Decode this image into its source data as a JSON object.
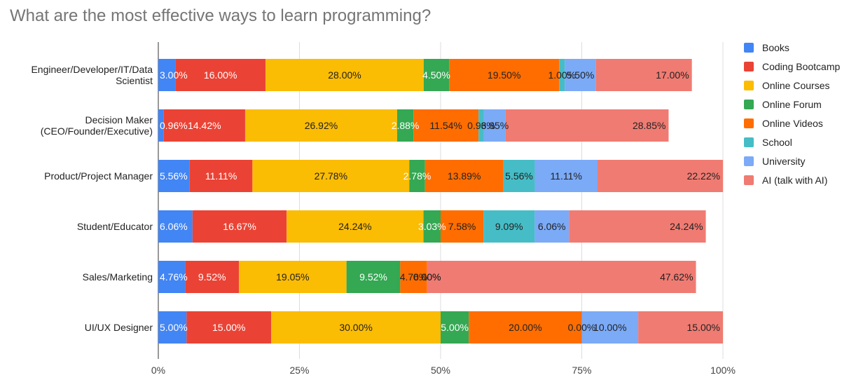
{
  "chart_data": {
    "type": "bar",
    "orientation": "horizontal",
    "stacked": "percent",
    "title": "What are the most effective ways to learn programming?",
    "xlim": [
      0,
      100
    ],
    "x_ticks": [
      "0%",
      "25%",
      "50%",
      "75%",
      "100%"
    ],
    "grid": true,
    "legend_position": "right",
    "categories": [
      [
        "Engineer/Developer/IT/Data",
        "Scientist"
      ],
      [
        "Decision Maker",
        "(CEO/Founder/Executive)"
      ],
      [
        "Product/Project Manager"
      ],
      [
        "Student/Educator"
      ],
      [
        "Sales/Marketing"
      ],
      [
        "UI/UX Designer"
      ]
    ],
    "series": [
      {
        "name": "Books",
        "color": "#4285f4",
        "label_color": "#ffffff",
        "values": [
          3.0,
          0.96,
          5.56,
          6.06,
          4.76,
          5.0
        ],
        "labels": [
          "3.00%",
          "0.96%",
          "5.56%",
          "6.06%",
          "4.76%",
          "5.00%"
        ]
      },
      {
        "name": "Coding Bootcamp",
        "color": "#ea4335",
        "label_color": "#ffffff",
        "values": [
          16.0,
          14.42,
          11.11,
          16.67,
          9.52,
          15.0
        ],
        "labels": [
          "16.00%",
          "14.42%",
          "11.11%",
          "16.67%",
          "9.52%",
          "15.00%"
        ]
      },
      {
        "name": "Online Courses",
        "color": "#fbbc04",
        "label_color": "#222222",
        "values": [
          28.0,
          26.92,
          27.78,
          24.24,
          19.05,
          30.0
        ],
        "labels": [
          "28.00%",
          "26.92%",
          "27.78%",
          "24.24%",
          "19.05%",
          "30.00%"
        ]
      },
      {
        "name": "Online Forum",
        "color": "#34a853",
        "label_color": "#ffffff",
        "values": [
          4.5,
          2.88,
          2.78,
          3.03,
          9.52,
          5.0
        ],
        "labels": [
          "4.50%",
          "2.88%",
          "2.78%",
          "3.03%",
          "9.52%",
          "5.00%"
        ]
      },
      {
        "name": "Online Videos",
        "color": "#ff6d01",
        "label_color": "#222222",
        "values": [
          19.5,
          11.54,
          13.89,
          7.58,
          4.76,
          20.0
        ],
        "labels": [
          "19.50%",
          "11.54%",
          "13.89%",
          "7.58%",
          "4.76%",
          "20.00%"
        ]
      },
      {
        "name": "School",
        "color": "#46bdc6",
        "label_color": "#222222",
        "values": [
          1.0,
          0.96,
          5.56,
          9.09,
          0.0,
          0.0
        ],
        "labels": [
          "1.00%",
          "0.96%",
          "5.56%",
          "9.09%",
          "0.00%",
          "0.00%"
        ]
      },
      {
        "name": "University",
        "color": "#7baaf7",
        "label_color": "#222222",
        "values": [
          5.5,
          3.85,
          11.11,
          6.06,
          0.0,
          10.0
        ],
        "labels": [
          "5.50%",
          "3.85%",
          "11.11%",
          "6.06%",
          "0.00%",
          "10.00%"
        ]
      },
      {
        "name": "AI (talk with AI)",
        "color": "#f07b72",
        "label_color": "#222222",
        "values": [
          17.0,
          28.85,
          22.22,
          24.24,
          47.62,
          15.0
        ],
        "labels": [
          "17.00%",
          "28.85%",
          "22.22%",
          "24.24%",
          "47.62%",
          "15.00%"
        ]
      }
    ]
  }
}
